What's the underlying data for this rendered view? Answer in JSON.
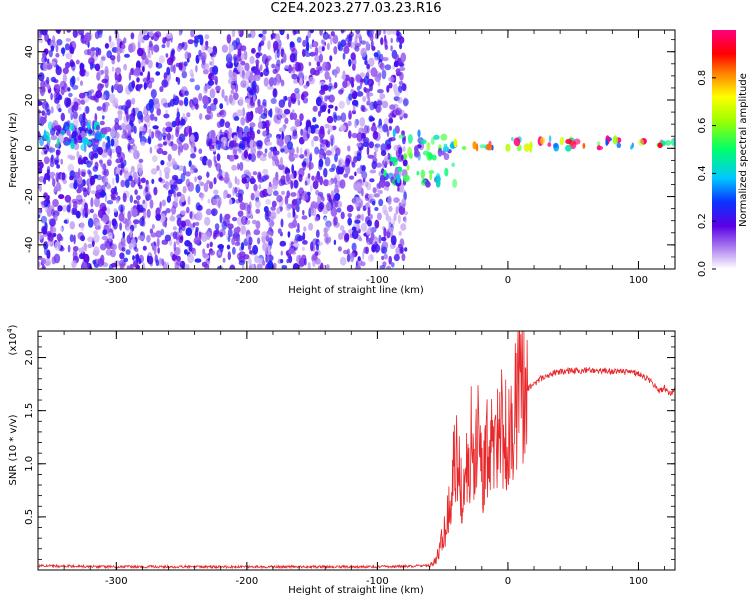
{
  "title": "C2E4.2023.277.03.23.R16",
  "colors": {
    "trace": "#e8272a",
    "axis": "#000000",
    "spectro_low": "#c9a8f0",
    "spectro_mid": "#4b00e0"
  },
  "chart_data": [
    {
      "type": "heatmap",
      "title": "C2E4.2023.277.03.23.R16",
      "xlabel": "Height of straight line (km)",
      "ylabel": "Frequency (Hz)",
      "xlim": [
        -360,
        128
      ],
      "ylim": [
        -50,
        49
      ],
      "xticks": [
        -300,
        -200,
        -100,
        0,
        100
      ],
      "yticks": [
        -40,
        -20,
        0,
        20,
        40
      ],
      "xtick_labels": [
        "-300",
        "-200",
        "-100",
        "0",
        "100"
      ],
      "ytick_labels": [
        "-40",
        "-20",
        "0",
        "20",
        "40"
      ],
      "colorbar": {
        "label": "Normalized spectral amplitude",
        "range": [
          0.0,
          1.0
        ],
        "ticks": [
          0.0,
          0.2,
          0.4,
          0.6,
          0.8
        ],
        "tick_labels": [
          "0.0",
          "0.2",
          "0.4",
          "0.6",
          "0.8"
        ],
        "colormap": "rainbow (white-violet-blue-cyan-green-yellow-red-magenta)"
      },
      "features": [
        {
          "description": "noise speckle",
          "x_range": [
            -360,
            -78
          ],
          "y_range": [
            -50,
            49
          ],
          "amplitude": 0.1
        },
        {
          "description": "weak band",
          "x_range": [
            -358,
            -305
          ],
          "y_range": [
            0,
            10
          ],
          "amplitude": 0.3
        },
        {
          "description": "weak band",
          "x_range": [
            -230,
            -195
          ],
          "y_range": [
            0,
            6
          ],
          "amplitude": 0.15
        },
        {
          "description": "scattered signal",
          "x_range": [
            -95,
            -40
          ],
          "y_range": [
            -15,
            8
          ],
          "amplitude": 0.4
        },
        {
          "description": "carrier line",
          "x_range": [
            -45,
            128
          ],
          "y_range": [
            0,
            4
          ],
          "amplitude": 0.9
        }
      ]
    },
    {
      "type": "line",
      "xlabel": "Height of straight line (km)",
      "ylabel": "SNR (10 * v/v)",
      "scale_label": "(x10",
      "scale_exp": "4",
      "scale_close": ")",
      "xlim": [
        -360,
        128
      ],
      "ylim": [
        0,
        2.25
      ],
      "xticks": [
        -300,
        -200,
        -100,
        0,
        100
      ],
      "yticks": [
        0.5,
        1.0,
        1.5,
        2.0
      ],
      "xtick_labels": [
        "-300",
        "-200",
        "-100",
        "0",
        "100"
      ],
      "ytick_labels": [
        "0.5",
        "1.0",
        "1.5",
        "2.0"
      ],
      "series": [
        {
          "x": [
            -360,
            -300,
            -200,
            -100,
            -60,
            -55,
            -50,
            -45,
            -42,
            -40,
            -35,
            -30,
            -25,
            -22,
            -20,
            -15,
            -10,
            -5,
            0,
            5,
            10,
            15,
            20,
            25,
            30,
            40,
            50,
            60,
            70,
            80,
            90,
            100,
            110,
            115,
            120,
            125,
            128
          ],
          "y": [
            0.04,
            0.03,
            0.03,
            0.03,
            0.04,
            0.1,
            0.3,
            0.55,
            0.9,
            1.1,
            0.7,
            0.9,
            1.05,
            1.4,
            0.8,
            1.2,
            1.1,
            1.3,
            1.35,
            1.55,
            1.6,
            1.7,
            1.75,
            1.8,
            1.83,
            1.87,
            1.88,
            1.88,
            1.87,
            1.87,
            1.86,
            1.85,
            1.78,
            1.68,
            1.72,
            1.65,
            1.72
          ]
        }
      ]
    }
  ]
}
